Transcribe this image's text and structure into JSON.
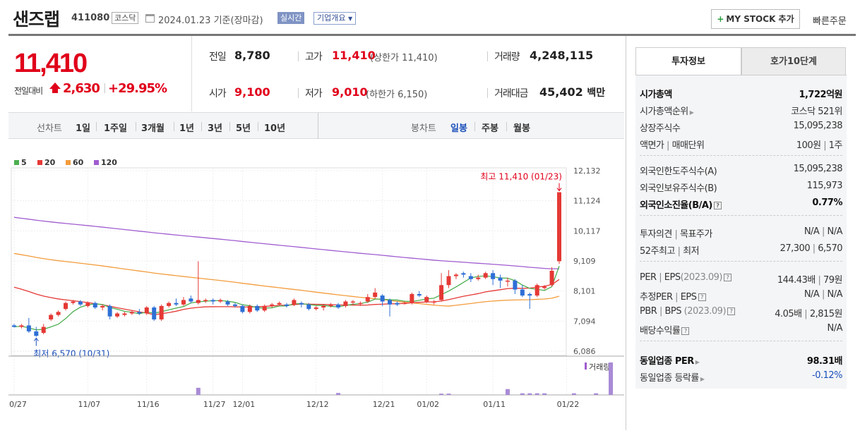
{
  "header": {
    "stock_name": "샌즈랩",
    "stock_code": "411080",
    "market": "코스닥",
    "date": "2024.01.23",
    "date_suffix": "기준(장마감)",
    "realtime_label": "실시간",
    "company_info_label": "기업개요",
    "mystock_label": "MY STOCK 추가",
    "quick_order_label": "빠른주문"
  },
  "price": {
    "current": "11,410",
    "change_label": "전일대비",
    "change_value": "2,630",
    "change_pct": "+29.95%"
  },
  "quotes": {
    "prev_label": "전일",
    "prev": "8,780",
    "high_label": "고가",
    "high": "11,410",
    "upper_limit": "(상한가 11,410)",
    "volume_label": "거래량",
    "volume": "4,248,115",
    "open_label": "시가",
    "open": "9,100",
    "low_label": "저가",
    "low": "9,010",
    "lower_limit": "(하한가 6,150)",
    "amount_label": "거래대금",
    "amount": "45,402",
    "amount_unit": "백만"
  },
  "period_bar": {
    "line_label": "선차트",
    "line_items": [
      "1일",
      "1주일",
      "3개월",
      "1년",
      "3년",
      "5년",
      "10년"
    ],
    "candle_label": "봉차트",
    "candle_items": [
      "일봉",
      "주봉",
      "월봉"
    ],
    "candle_selected": "일봉"
  },
  "chart_data": {
    "type": "candlestick",
    "legend": [
      {
        "name": "5",
        "color": "#4caf50"
      },
      {
        "name": "20",
        "color": "#e53935"
      },
      {
        "name": "60",
        "color": "#f39c3c"
      },
      {
        "name": "120",
        "color": "#a05cd0"
      }
    ],
    "y_ticks": [
      "12,132",
      "11,124",
      "10,117",
      "9,109",
      "8,101",
      "7,094",
      "6,086"
    ],
    "y_values": [
      12132,
      11124,
      10117,
      9109,
      8101,
      7094,
      6086
    ],
    "x_ticks": [
      "10/27",
      "11/07",
      "11/16",
      "11/27",
      "12/01",
      "12/12",
      "12/21",
      "01/02",
      "01/11",
      "01/22"
    ],
    "high_annotation": "최고 11,410 (01/23)",
    "low_annotation": "최저 6,570 (10/31)",
    "volume_label": "거래량",
    "candles": [
      [
        6950,
        6900,
        7000,
        6880
      ],
      [
        6900,
        6950,
        7000,
        6850
      ],
      [
        6950,
        6750,
        7200,
        6700
      ],
      [
        6750,
        6600,
        6900,
        6570
      ],
      [
        6700,
        6900,
        7000,
        6650
      ],
      [
        7150,
        7300,
        7350,
        7100
      ],
      [
        7300,
        7400,
        7450,
        7250
      ],
      [
        7500,
        7700,
        7750,
        7450
      ],
      [
        7700,
        7750,
        7800,
        7650
      ],
      [
        7750,
        7650,
        7800,
        7600
      ],
      [
        7600,
        7700,
        7750,
        7550
      ],
      [
        7700,
        7550,
        7750,
        7500
      ],
      [
        7550,
        7600,
        7650,
        7450
      ],
      [
        7600,
        7250,
        7650,
        7150
      ],
      [
        7250,
        7350,
        7400,
        7200
      ],
      [
        7300,
        7350,
        7400,
        7250
      ],
      [
        7350,
        7400,
        7450,
        7300
      ],
      [
        7400,
        7350,
        7500,
        7300
      ],
      [
        7350,
        7550,
        7600,
        7300
      ],
      [
        7550,
        7150,
        7600,
        7100
      ],
      [
        7150,
        7600,
        7650,
        7100
      ],
      [
        7600,
        7700,
        7750,
        7550
      ],
      [
        7700,
        7650,
        7850,
        7600
      ],
      [
        7650,
        7800,
        7900,
        7600
      ],
      [
        7850,
        7750,
        7950,
        7700
      ],
      [
        7700,
        7800,
        9100,
        7650
      ],
      [
        7800,
        7800,
        7850,
        7700
      ],
      [
        7800,
        7750,
        7850,
        7650
      ],
      [
        7750,
        7800,
        7850,
        7700
      ],
      [
        7750,
        7650,
        7800,
        7600
      ],
      [
        7650,
        7600,
        7700,
        7550
      ],
      [
        7600,
        7400,
        7650,
        7350
      ],
      [
        7400,
        7600,
        7650,
        7350
      ],
      [
        7600,
        7450,
        7650,
        7400
      ],
      [
        7450,
        7600,
        7650,
        7400
      ],
      [
        7600,
        7650,
        7700,
        7550
      ],
      [
        7650,
        7700,
        7750,
        7600
      ],
      [
        7650,
        7600,
        7700,
        7550
      ],
      [
        7650,
        7800,
        7850,
        7600
      ],
      [
        7700,
        7650,
        7750,
        7550
      ],
      [
        7650,
        7500,
        7700,
        7450
      ],
      [
        7500,
        7550,
        7600,
        7450
      ],
      [
        7550,
        7600,
        7650,
        7450
      ],
      [
        7600,
        7650,
        7700,
        7550
      ],
      [
        7650,
        7550,
        7700,
        7500
      ],
      [
        7600,
        7750,
        7800,
        7550
      ],
      [
        7750,
        7750,
        7800,
        7650
      ],
      [
        7700,
        7700,
        7750,
        7600
      ],
      [
        7750,
        7900,
        8000,
        7700
      ],
      [
        7900,
        8050,
        8200,
        7850
      ],
      [
        7950,
        7750,
        8000,
        7600
      ],
      [
        7800,
        7650,
        7850,
        7250
      ],
      [
        7700,
        7650,
        7750,
        7600
      ],
      [
        7700,
        7700,
        7750,
        7650
      ],
      [
        7700,
        8000,
        8050,
        7650
      ],
      [
        8000,
        7950,
        8100,
        7900
      ],
      [
        7750,
        7900,
        7950,
        7700
      ],
      [
        7750,
        7750,
        7800,
        7650
      ],
      [
        7800,
        8300,
        8700,
        7750
      ],
      [
        8300,
        8600,
        8800,
        8200
      ],
      [
        8600,
        8650,
        8700,
        8500
      ],
      [
        8700,
        8650,
        8750,
        8550
      ],
      [
        8600,
        8500,
        8700,
        8400
      ],
      [
        8500,
        8550,
        8650,
        8450
      ],
      [
        8550,
        8700,
        8750,
        8500
      ],
      [
        8700,
        8500,
        8800,
        8300
      ],
      [
        8550,
        8450,
        8650,
        8200
      ],
      [
        8450,
        8450,
        8550,
        8250
      ],
      [
        8450,
        8150,
        8500,
        8000
      ],
      [
        8150,
        7950,
        8300,
        7900
      ],
      [
        8000,
        7950,
        8050,
        7500
      ],
      [
        7950,
        8300,
        8350,
        7900
      ],
      [
        8200,
        8250,
        8300,
        8150
      ],
      [
        8300,
        8780,
        8900,
        8250
      ],
      [
        9100,
        11410,
        11410,
        9010
      ]
    ],
    "volume_bars": [
      {
        "i": 25,
        "v": 0.22
      },
      {
        "i": 44,
        "v": 0.06
      },
      {
        "i": 58,
        "v": 0.04
      },
      {
        "i": 59,
        "v": 0.04
      },
      {
        "i": 67,
        "v": 0.18
      },
      {
        "i": 69,
        "v": 0.05
      },
      {
        "i": 70,
        "v": 0.05
      },
      {
        "i": 71,
        "v": 0.05
      },
      {
        "i": 72,
        "v": 0.05
      },
      {
        "i": 76,
        "v": 0.05
      },
      {
        "i": 79,
        "v": 0.05
      },
      {
        "i": 81,
        "v": 1.0
      }
    ]
  },
  "side": {
    "tab_active": "투자정보",
    "tab_other": "호가10단계",
    "market_cap_label": "시가총액",
    "market_cap": "1,722억원",
    "rank_label": "시가총액순위",
    "rank": "코스닥 521위",
    "shares_label": "상장주식수",
    "shares": "15,095,238",
    "par_label": "액면가",
    "par_sep": "매매단위",
    "par": "100원",
    "unit": "1주",
    "foreign_limit_label": "외국인한도주식수(A)",
    "foreign_limit": "15,095,238",
    "foreign_hold_label": "외국인보유주식수(B)",
    "foreign_hold": "115,973",
    "foreign_ratio_label": "외국인소진율(B/A)",
    "foreign_ratio": "0.77%",
    "opinion_label": "투자의견",
    "target_label": "목표주가",
    "opinion": "N/A",
    "target": "N/A",
    "w52_label": "52주최고",
    "w52_low_label": "최저",
    "w52_high": "27,300",
    "w52_low": "6,570",
    "per_label": "PER",
    "eps_label": "EPS",
    "per_year": "(2023.09)",
    "per": "144.43배",
    "eps": "79원",
    "est_per_label": "추정PER",
    "est_eps_label": "EPS",
    "est_per": "N/A",
    "est_eps": "N/A",
    "pbr_label": "PBR",
    "bps_label": "BPS",
    "pbr_year": "(2023.09)",
    "pbr": "4.05배",
    "bps": "2,815원",
    "div_label": "배당수익률",
    "div": "N/A",
    "ind_per_label": "동일업종 PER",
    "ind_per": "98.31배",
    "ind_rate_label": "동일업종 등락률",
    "ind_rate": "-0.12%"
  }
}
